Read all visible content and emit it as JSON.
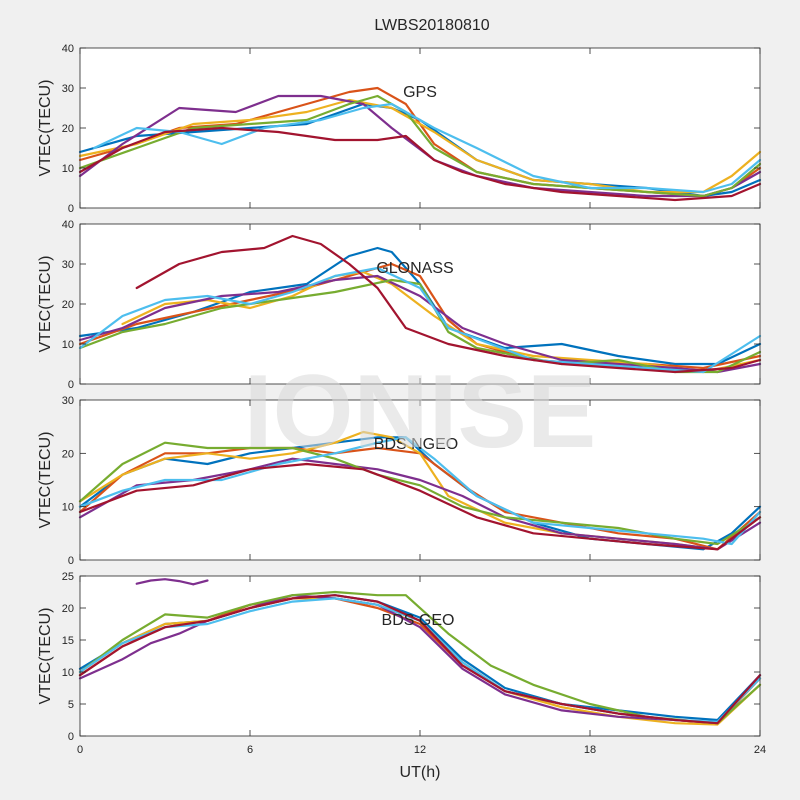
{
  "figure": {
    "title": "LWBS20180810",
    "watermark": "IONISE",
    "background": "#f0f0f0"
  },
  "chart_data": [
    {
      "type": "line",
      "label": "GPS",
      "xlabel": "",
      "ylabel": "VTEC(TECU)",
      "xlim": [
        0,
        24
      ],
      "ylim": [
        0,
        40
      ],
      "xticks": [
        0,
        6,
        12,
        18,
        24
      ],
      "yticks": [
        0,
        10,
        20,
        30,
        40
      ],
      "show_xticklabels": false,
      "grid": false,
      "series": [
        {
          "color": "#0072BD",
          "x": [
            0,
            2,
            4,
            6,
            8,
            10,
            11,
            12,
            13,
            14,
            16,
            18,
            20,
            22,
            23,
            24
          ],
          "y": [
            14,
            18,
            19,
            20,
            21,
            26,
            25,
            22,
            17,
            12,
            7,
            6,
            5,
            3,
            4,
            7
          ]
        },
        {
          "color": "#D95319",
          "x": [
            0,
            1.5,
            3.5,
            5.5,
            7.5,
            9.5,
            10.5,
            11.5,
            12.5,
            14,
            16,
            18,
            20,
            22,
            23,
            24
          ],
          "y": [
            12,
            15,
            20,
            21,
            25,
            29,
            30,
            26,
            16,
            9,
            6,
            5,
            4,
            3,
            5,
            10
          ]
        },
        {
          "color": "#EDB120",
          "x": [
            0,
            2,
            4,
            6,
            8,
            9.5,
            11,
            12.5,
            14,
            16,
            18,
            20,
            22,
            23,
            24
          ],
          "y": [
            13,
            16,
            21,
            22,
            24,
            27,
            25,
            19,
            12,
            7,
            6,
            4,
            4,
            8,
            14
          ]
        },
        {
          "color": "#7E2F8E",
          "x": [
            0,
            1.5,
            3.5,
            5.5,
            7,
            8.5,
            10,
            11,
            12.5,
            14,
            16,
            18,
            20,
            22,
            23,
            24
          ],
          "y": [
            8,
            16,
            25,
            24,
            28,
            28,
            26,
            20,
            12,
            8,
            5,
            4,
            3,
            3,
            5,
            9
          ]
        },
        {
          "color": "#77AC30",
          "x": [
            0,
            2,
            4,
            6,
            8,
            9.5,
            10.5,
            11.5,
            12.5,
            14,
            16,
            18,
            20,
            22,
            23,
            24
          ],
          "y": [
            10,
            15,
            20,
            21,
            22,
            26,
            28,
            24,
            15,
            9,
            6,
            5,
            4,
            3,
            5,
            11
          ]
        },
        {
          "color": "#4DBEEE",
          "x": [
            0.5,
            2,
            3.5,
            5,
            6.5,
            8.5,
            10,
            11,
            12.5,
            14,
            16,
            18,
            20,
            22,
            23,
            24
          ],
          "y": [
            15,
            20,
            19,
            16,
            20,
            22,
            25,
            26,
            20,
            15,
            8,
            5,
            5,
            4,
            6,
            12
          ]
        },
        {
          "color": "#A2142F",
          "x": [
            0,
            1.5,
            3,
            5,
            7,
            9,
            10.5,
            11.5,
            12.5,
            13.5,
            15,
            17,
            19,
            21,
            23,
            24
          ],
          "y": [
            9,
            15,
            19,
            20,
            19,
            17,
            17,
            18,
            12,
            9,
            6,
            4,
            3,
            2,
            3,
            6
          ]
        }
      ]
    },
    {
      "type": "line",
      "label": "GLONASS",
      "xlabel": "",
      "ylabel": "VTEC(TECU)",
      "xlim": [
        0,
        24
      ],
      "ylim": [
        0,
        40
      ],
      "xticks": [
        0,
        6,
        12,
        18,
        24
      ],
      "yticks": [
        0,
        10,
        20,
        30,
        40
      ],
      "show_xticklabels": false,
      "grid": false,
      "series": [
        {
          "color": "#0072BD",
          "x": [
            0,
            2,
            4,
            6,
            8,
            9.5,
            10.5,
            11,
            12,
            13,
            15,
            17,
            19,
            21,
            22.5,
            24
          ],
          "y": [
            12,
            14,
            18,
            23,
            25,
            32,
            34,
            33,
            25,
            14,
            9,
            10,
            7,
            5,
            5,
            10
          ]
        },
        {
          "color": "#D95319",
          "x": [
            0,
            2,
            4,
            6,
            8,
            10,
            11,
            12,
            13,
            14,
            16,
            18,
            20,
            22,
            24
          ],
          "y": [
            10,
            15,
            18,
            21,
            24,
            28,
            30,
            27,
            16,
            10,
            6,
            5,
            5,
            4,
            7
          ]
        },
        {
          "color": "#EDB120",
          "x": [
            1.5,
            3,
            4.5,
            6,
            7.5,
            9,
            10,
            11,
            12.5,
            14,
            16,
            18,
            20,
            22,
            24
          ],
          "y": [
            15,
            20,
            21,
            19,
            22,
            27,
            28,
            25,
            17,
            10,
            7,
            6,
            5,
            3,
            6
          ]
        },
        {
          "color": "#7E2F8E",
          "x": [
            0,
            1.5,
            3,
            5,
            7,
            9,
            10.5,
            12,
            13.5,
            15,
            17,
            19,
            21,
            22.5,
            24
          ],
          "y": [
            11,
            14,
            19,
            22,
            23,
            26,
            27,
            22,
            14,
            10,
            6,
            5,
            4,
            3,
            5
          ]
        },
        {
          "color": "#77AC30",
          "x": [
            0,
            1.5,
            3,
            5,
            7,
            9,
            11,
            12,
            13,
            14,
            17,
            19,
            21,
            22.5,
            24
          ],
          "y": [
            9,
            13,
            15,
            19,
            21,
            23,
            26,
            25,
            13,
            9,
            5,
            6,
            3,
            3,
            8
          ]
        },
        {
          "color": "#4DBEEE",
          "x": [
            0,
            1.5,
            3,
            4.5,
            6,
            7.5,
            9,
            10.5,
            12,
            13,
            14.5,
            16,
            18,
            20,
            22,
            24
          ],
          "y": [
            9,
            17,
            21,
            22,
            20,
            23,
            27,
            29,
            24,
            14,
            10,
            6,
            5,
            4,
            3,
            12
          ]
        },
        {
          "color": "#A2142F",
          "x": [
            2,
            3.5,
            5,
            6.5,
            7.5,
            8.5,
            9.5,
            10.5,
            11.5,
            13,
            15,
            17,
            19,
            21,
            23,
            24
          ],
          "y": [
            24,
            30,
            33,
            34,
            37,
            35,
            30,
            24,
            14,
            10,
            7,
            5,
            4,
            3,
            4,
            6
          ]
        }
      ]
    },
    {
      "type": "line",
      "label": "BDS NGEO",
      "xlabel": "",
      "ylabel": "VTEC(TECU)",
      "xlim": [
        0,
        24
      ],
      "ylim": [
        0,
        30
      ],
      "xticks": [
        0,
        6,
        12,
        18,
        24
      ],
      "yticks": [
        0,
        10,
        20,
        30
      ],
      "show_xticklabels": false,
      "grid": false,
      "series": [
        {
          "color": "#0072BD",
          "x": [
            0,
            1.5,
            3,
            4.5,
            6,
            7.5,
            9,
            10.5,
            11.5,
            12.5,
            14,
            16,
            18,
            20,
            22,
            23,
            24
          ],
          "y": [
            10,
            16,
            19,
            18,
            20,
            21,
            22,
            23,
            23,
            18,
            12,
            7,
            4,
            3,
            2,
            5,
            10
          ]
        },
        {
          "color": "#D95319",
          "x": [
            0,
            1.5,
            3,
            4.5,
            6,
            7.5,
            9,
            10.5,
            12,
            13.5,
            15,
            17,
            19,
            21,
            22.5,
            24
          ],
          "y": [
            9,
            16,
            20,
            20,
            21,
            21,
            20,
            21,
            20,
            14,
            9,
            7,
            5,
            4,
            2,
            9
          ]
        },
        {
          "color": "#EDB120",
          "x": [
            0,
            1.5,
            3,
            4.5,
            6,
            7.5,
            9,
            10,
            11,
            12,
            13,
            15,
            17,
            19,
            21,
            22.5,
            24
          ],
          "y": [
            11,
            16,
            19,
            20,
            19,
            20,
            22,
            24,
            23,
            20,
            12,
            7,
            5,
            4,
            3,
            2,
            8
          ]
        },
        {
          "color": "#7E2F8E",
          "x": [
            0,
            2,
            4,
            6,
            7.5,
            9,
            10.5,
            12,
            13.5,
            15,
            17,
            19,
            21,
            22.5,
            24
          ],
          "y": [
            8,
            14,
            15,
            17,
            19,
            18,
            17,
            15,
            12,
            8,
            5,
            4,
            3,
            2,
            7
          ]
        },
        {
          "color": "#77AC30",
          "x": [
            0,
            1.5,
            3,
            4.5,
            6,
            7.5,
            9,
            10.5,
            12,
            13.5,
            15,
            17,
            19,
            21,
            22.5,
            24
          ],
          "y": [
            11,
            18,
            22,
            21,
            21,
            21,
            19,
            16,
            14,
            10,
            8,
            7,
            6,
            4,
            3,
            8
          ]
        },
        {
          "color": "#4DBEEE",
          "x": [
            0,
            1.5,
            3,
            5,
            7,
            9,
            10.5,
            11.5,
            12.5,
            14,
            16,
            18,
            20,
            22,
            23,
            24
          ],
          "y": [
            10,
            13,
            15,
            15,
            18,
            20,
            22,
            23,
            19,
            12,
            7,
            6,
            5,
            4,
            3,
            9
          ]
        },
        {
          "color": "#A2142F",
          "x": [
            0,
            2,
            4,
            6,
            8,
            10,
            12,
            14,
            16,
            18,
            20,
            22.5,
            24
          ],
          "y": [
            9,
            13,
            14,
            17,
            18,
            17,
            13,
            8,
            5,
            4,
            3,
            2,
            8
          ]
        }
      ]
    },
    {
      "type": "line",
      "label": "BDS GEO",
      "xlabel": "UT(h)",
      "ylabel": "VTEC(TECU)",
      "xlim": [
        0,
        24
      ],
      "ylim": [
        0,
        25
      ],
      "xticks": [
        0,
        6,
        12,
        18,
        24
      ],
      "yticks": [
        0,
        5,
        10,
        15,
        20,
        25
      ],
      "xticklabels": [
        "0",
        "6",
        "12",
        "18",
        "24"
      ],
      "show_xticklabels": true,
      "grid": false,
      "series": [
        {
          "color": "#0072BD",
          "x": [
            0,
            1.5,
            3,
            4.5,
            6,
            7.5,
            9,
            10.5,
            12,
            13.5,
            15,
            17,
            19,
            21,
            22.5,
            24
          ],
          "y": [
            10.5,
            14.5,
            17.5,
            18,
            20,
            21.5,
            22,
            21,
            18.5,
            12,
            7.5,
            5,
            4,
            3,
            2.5,
            9.5
          ]
        },
        {
          "color": "#D95319",
          "x": [
            0,
            1.5,
            3,
            4.5,
            6,
            7.5,
            9,
            10.5,
            12,
            13.5,
            15,
            17,
            19,
            21,
            22.5,
            24
          ],
          "y": [
            9.5,
            14,
            17,
            18,
            20.5,
            21.5,
            21.5,
            20,
            17.5,
            11,
            7,
            5,
            3.5,
            2.5,
            2,
            9
          ]
        },
        {
          "color": "#EDB120",
          "x": [
            0,
            1.5,
            3,
            4.5,
            6,
            7.5,
            9,
            10.5,
            12,
            13.5,
            15,
            17,
            19,
            21,
            22.5,
            24
          ],
          "y": [
            10,
            14.5,
            17.5,
            18,
            20,
            21.5,
            21.5,
            20.5,
            18,
            11.5,
            7,
            4.5,
            3,
            2,
            1.8,
            8
          ]
        },
        {
          "color": "#7E2F8E",
          "x": [
            0,
            1.5,
            2.5,
            3.5,
            4.5,
            6,
            7.5,
            9,
            10.5,
            12,
            13.5,
            15,
            17,
            19,
            21,
            22.5,
            24
          ],
          "y": [
            9,
            12,
            14.5,
            16,
            18,
            20,
            22,
            21.5,
            20.5,
            17,
            10.5,
            6.5,
            4,
            3,
            2.5,
            2,
            9.5
          ]
        },
        {
          "color": "#77AC30",
          "x": [
            0,
            1.5,
            3,
            4.5,
            6,
            7.5,
            9,
            10.5,
            11.5,
            13,
            14.5,
            16,
            18,
            20,
            22.5,
            24
          ],
          "y": [
            10,
            15,
            19,
            18.5,
            20.5,
            22,
            22.5,
            22,
            22,
            16,
            11,
            8,
            5,
            3,
            2,
            8
          ]
        },
        {
          "color": "#4DBEEE",
          "x": [
            0,
            1.5,
            3,
            4.5,
            6,
            7.5,
            9,
            10.5,
            12,
            13.5,
            15,
            17,
            19,
            21,
            22.5,
            24
          ],
          "y": [
            10,
            14.5,
            17,
            17.5,
            19.5,
            21,
            21.5,
            20.5,
            18,
            11.5,
            7,
            5,
            3.5,
            2.5,
            2.2,
            9
          ]
        },
        {
          "color": "#A2142F",
          "x": [
            0,
            1.5,
            3,
            4.5,
            6,
            7.5,
            9,
            10.5,
            12,
            13.5,
            15,
            17,
            19,
            21,
            22.5,
            24
          ],
          "y": [
            9.5,
            14,
            17,
            18,
            20,
            21.5,
            22,
            21,
            18,
            11,
            7,
            5,
            3.5,
            2.5,
            2,
            9.5
          ]
        },
        {
          "color": "#7E2F8E",
          "x": [
            2,
            2.5,
            3,
            3.5,
            4
          ],
          "y": [
            23.8,
            24.3,
            24.5,
            24.2,
            23.7
          ]
        },
        {
          "color": "#7E2F8E",
          "x": [
            4,
            4.5
          ],
          "y": [
            23.7,
            24.3
          ]
        }
      ]
    }
  ]
}
